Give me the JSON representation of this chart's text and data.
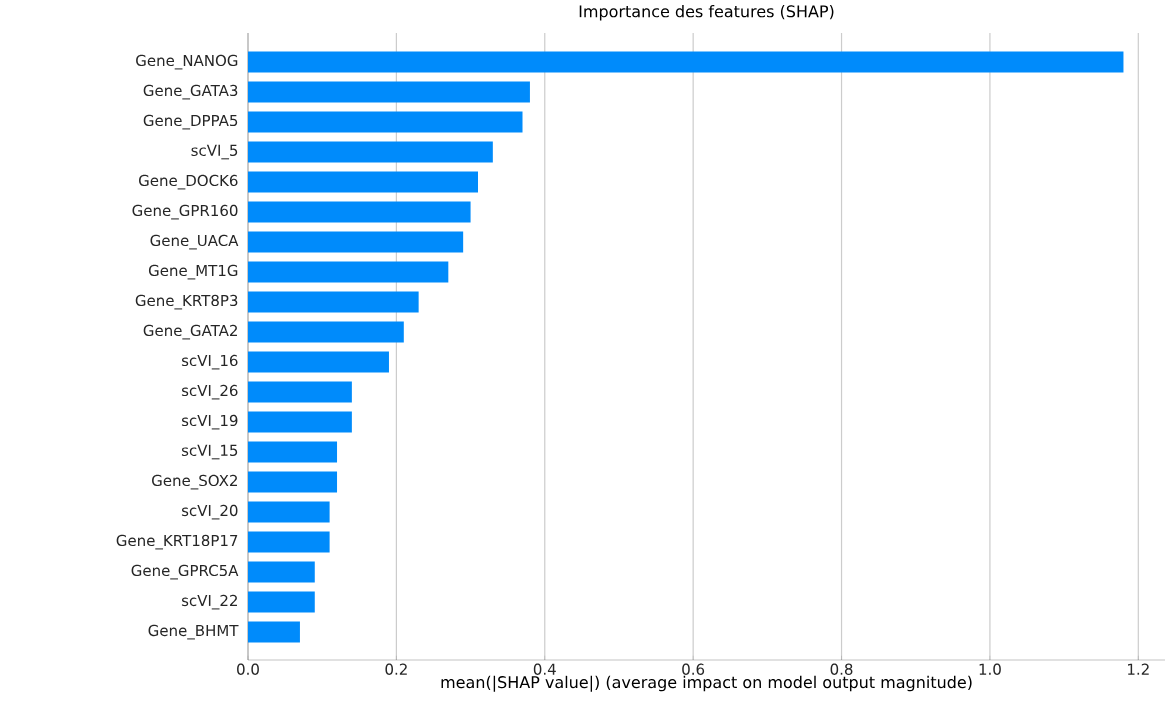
{
  "chart_data": {
    "type": "bar",
    "orientation": "horizontal",
    "title": "Importance des features (SHAP)",
    "xlabel": "mean(|SHAP value|) (average impact on model output magnitude)",
    "categories": [
      "Gene_NANOG",
      "Gene_GATA3",
      "Gene_DPPA5",
      "scVI_5",
      "Gene_DOCK6",
      "Gene_GPR160",
      "Gene_UACA",
      "Gene_MT1G",
      "Gene_KRT8P3",
      "Gene_GATA2",
      "scVI_16",
      "scVI_26",
      "scVI_19",
      "scVI_15",
      "Gene_SOX2",
      "scVI_20",
      "Gene_KRT18P17",
      "Gene_GPRC5A",
      "scVI_22",
      "Gene_BHMT"
    ],
    "values": [
      1.18,
      0.38,
      0.37,
      0.33,
      0.31,
      0.3,
      0.29,
      0.27,
      0.23,
      0.21,
      0.19,
      0.14,
      0.14,
      0.12,
      0.12,
      0.11,
      0.11,
      0.09,
      0.09,
      0.07
    ],
    "color": "#008bfb",
    "xlim": [
      0,
      1.236
    ],
    "xticks": [
      {
        "value": 0,
        "label": "0.0"
      },
      {
        "value": 0.2,
        "label": "0.2"
      },
      {
        "value": 0.4,
        "label": "0.4"
      },
      {
        "value": 0.6,
        "label": "0.6"
      },
      {
        "value": 0.8,
        "label": "0.8"
      },
      {
        "value": 1.0,
        "label": "1.0"
      },
      {
        "value": 1.2,
        "label": "1.2"
      }
    ],
    "grid": "x"
  }
}
